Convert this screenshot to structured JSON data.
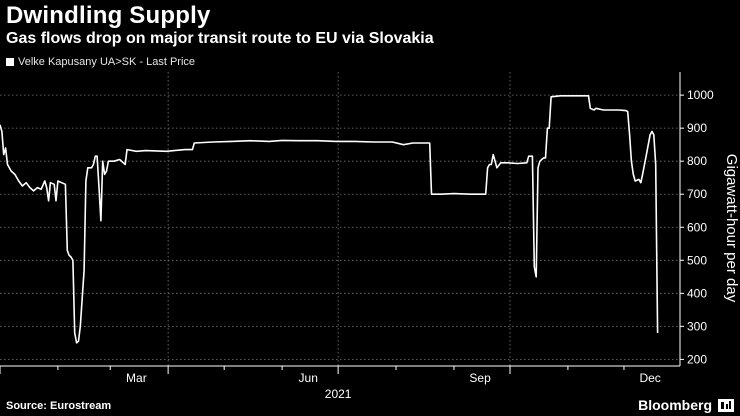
{
  "header": {
    "title": "Dwindling Supply",
    "subtitle": "Gas flows drop on major transit route to EU via Slovakia"
  },
  "footer": {
    "source": "Source: Eurostream",
    "brand": "Bloomberg"
  },
  "colors": {
    "background": "#000000",
    "series": "#ffffff",
    "grid": "#7a7a7a"
  },
  "chart_data": {
    "type": "line",
    "title": "Dwindling Supply",
    "subtitle": "Gas flows drop on major transit route to EU via Slovakia",
    "ylabel": "Gigawatt-hour per day",
    "xlabel": "",
    "ylim": [
      180,
      1070
    ],
    "xlim": [
      "2021-01-01",
      "2021-12-31"
    ],
    "yticks": [
      200,
      300,
      400,
      500,
      600,
      700,
      800,
      900,
      1000
    ],
    "xticks": [
      {
        "label": "Mar",
        "date": "2021-03-15"
      },
      {
        "label": "Jun",
        "date": "2021-06-15"
      },
      {
        "label": "Sep",
        "date": "2021-09-15"
      },
      {
        "label": "Dec",
        "date": "2021-12-15"
      }
    ],
    "year_label": "2021",
    "grid": true,
    "legend_position": "top-left",
    "series": [
      {
        "name": "Velke Kapusany UA>SK - Last Price",
        "points": [
          [
            "2021-01-01",
            910
          ],
          [
            "2021-01-02",
            890
          ],
          [
            "2021-01-03",
            820
          ],
          [
            "2021-01-04",
            840
          ],
          [
            "2021-01-05",
            790
          ],
          [
            "2021-01-07",
            770
          ],
          [
            "2021-01-09",
            760
          ],
          [
            "2021-01-11",
            740
          ],
          [
            "2021-01-13",
            725
          ],
          [
            "2021-01-15",
            735
          ],
          [
            "2021-01-17",
            720
          ],
          [
            "2021-01-19",
            710
          ],
          [
            "2021-01-21",
            720
          ],
          [
            "2021-01-23",
            715
          ],
          [
            "2021-01-25",
            740
          ],
          [
            "2021-01-26",
            720
          ],
          [
            "2021-01-27",
            680
          ],
          [
            "2021-01-28",
            735
          ],
          [
            "2021-01-30",
            730
          ],
          [
            "2021-01-31",
            680
          ],
          [
            "2021-02-01",
            740
          ],
          [
            "2021-02-03",
            735
          ],
          [
            "2021-02-05",
            730
          ],
          [
            "2021-02-06",
            530
          ],
          [
            "2021-02-07",
            515
          ],
          [
            "2021-02-08",
            510
          ],
          [
            "2021-02-09",
            500
          ],
          [
            "2021-02-10",
            280
          ],
          [
            "2021-02-11",
            250
          ],
          [
            "2021-02-12",
            255
          ],
          [
            "2021-02-13",
            300
          ],
          [
            "2021-02-15",
            470
          ],
          [
            "2021-02-16",
            740
          ],
          [
            "2021-02-17",
            780
          ],
          [
            "2021-02-19",
            780
          ],
          [
            "2021-02-20",
            790
          ],
          [
            "2021-02-21",
            815
          ],
          [
            "2021-02-22",
            815
          ],
          [
            "2021-02-23",
            720
          ],
          [
            "2021-02-24",
            620
          ],
          [
            "2021-02-25",
            800
          ],
          [
            "2021-02-26",
            760
          ],
          [
            "2021-02-27",
            770
          ],
          [
            "2021-02-28",
            800
          ],
          [
            "2021-03-03",
            800
          ],
          [
            "2021-03-06",
            805
          ],
          [
            "2021-03-08",
            795
          ],
          [
            "2021-03-09",
            790
          ],
          [
            "2021-03-10",
            835
          ],
          [
            "2021-03-15",
            830
          ],
          [
            "2021-03-20",
            832
          ],
          [
            "2021-03-31",
            830
          ],
          [
            "2021-04-10",
            835
          ],
          [
            "2021-04-14",
            835
          ],
          [
            "2021-04-15",
            855
          ],
          [
            "2021-04-25",
            858
          ],
          [
            "2021-05-05",
            860
          ],
          [
            "2021-05-15",
            862
          ],
          [
            "2021-05-25",
            860
          ],
          [
            "2021-06-01",
            863
          ],
          [
            "2021-06-10",
            862
          ],
          [
            "2021-06-20",
            862
          ],
          [
            "2021-06-30",
            860
          ],
          [
            "2021-07-10",
            860
          ],
          [
            "2021-07-20",
            858
          ],
          [
            "2021-07-30",
            858
          ],
          [
            "2021-08-05",
            850
          ],
          [
            "2021-08-10",
            855
          ],
          [
            "2021-08-19",
            855
          ],
          [
            "2021-08-20",
            700
          ],
          [
            "2021-08-25",
            700
          ],
          [
            "2021-09-01",
            702
          ],
          [
            "2021-09-10",
            700
          ],
          [
            "2021-09-18",
            700
          ],
          [
            "2021-09-19",
            780
          ],
          [
            "2021-09-20",
            790
          ],
          [
            "2021-09-21",
            790
          ],
          [
            "2021-09-22",
            820
          ],
          [
            "2021-09-23",
            800
          ],
          [
            "2021-09-24",
            780
          ],
          [
            "2021-09-26",
            795
          ],
          [
            "2021-09-30",
            795
          ],
          [
            "2021-10-05",
            793
          ],
          [
            "2021-10-10",
            795
          ],
          [
            "2021-10-11",
            815
          ],
          [
            "2021-10-13",
            815
          ],
          [
            "2021-10-14",
            480
          ],
          [
            "2021-10-15",
            450
          ],
          [
            "2021-10-16",
            780
          ],
          [
            "2021-10-17",
            800
          ],
          [
            "2021-10-19",
            810
          ],
          [
            "2021-10-20",
            810
          ],
          [
            "2021-10-21",
            900
          ],
          [
            "2021-10-22",
            900
          ],
          [
            "2021-10-23",
            995
          ],
          [
            "2021-10-28",
            998
          ],
          [
            "2021-11-05",
            998
          ],
          [
            "2021-11-12",
            998
          ],
          [
            "2021-11-13",
            960
          ],
          [
            "2021-11-15",
            955
          ],
          [
            "2021-11-16",
            960
          ],
          [
            "2021-11-20",
            955
          ],
          [
            "2021-11-28",
            955
          ],
          [
            "2021-12-02",
            953
          ],
          [
            "2021-12-03",
            950
          ],
          [
            "2021-12-04",
            880
          ],
          [
            "2021-12-05",
            800
          ],
          [
            "2021-12-06",
            760
          ],
          [
            "2021-12-07",
            740
          ],
          [
            "2021-12-09",
            745
          ],
          [
            "2021-12-10",
            735
          ],
          [
            "2021-12-11",
            760
          ],
          [
            "2021-12-13",
            820
          ],
          [
            "2021-12-15",
            880
          ],
          [
            "2021-12-16",
            890
          ],
          [
            "2021-12-17",
            880
          ],
          [
            "2021-12-18",
            790
          ],
          [
            "2021-12-19",
            280
          ]
        ]
      }
    ]
  }
}
